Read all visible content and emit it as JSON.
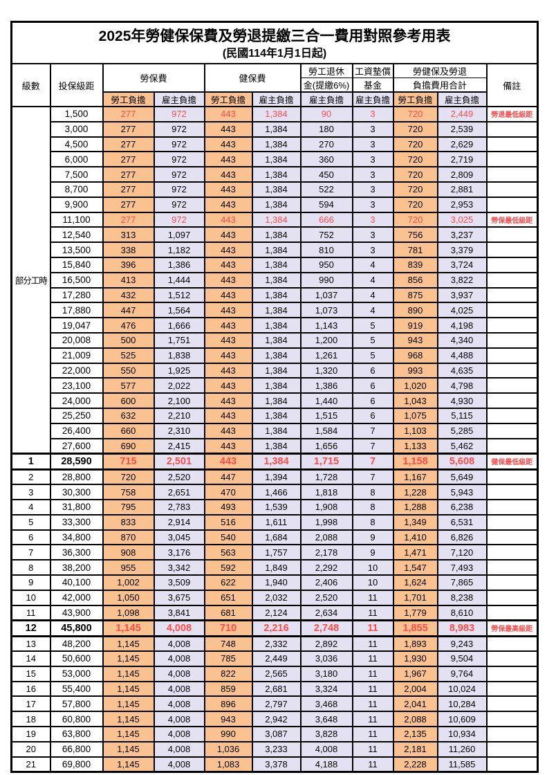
{
  "title": "2025年勞健保保費及勞退提繳三合一費用對照參考用表",
  "subtitle": "(民國114年1月1日起)",
  "colors": {
    "employee_bg": "#FAC291",
    "employer_bg": "#E4E2F2",
    "highlight_red": "#FF4A4A",
    "border": "#000000"
  },
  "header": {
    "level": "級數",
    "bracket": "投保級距",
    "labor": "勞保費",
    "health": "健保費",
    "pension_l1": "勞工退休",
    "pension_l2": "金(提繳6%)",
    "fund_l1": "工資墊償",
    "fund_l2": "基金",
    "total_l1": "勞健保及勞退",
    "total_l2": "負擔費用合計",
    "remark": "備註",
    "employee_share": "勞工負擔",
    "employer_share": "雇主負擔"
  },
  "table": {
    "part_time_label": "部分工時",
    "part_time_rowspan": 23,
    "rows": [
      {
        "level": "",
        "bracket": "1,500",
        "values": [
          "277",
          "972",
          "443",
          "1,384",
          "90",
          "3",
          "720",
          "2,449"
        ],
        "remark": "勞退最低級距",
        "red": true
      },
      {
        "level": "",
        "bracket": "3,000",
        "values": [
          "277",
          "972",
          "443",
          "1,384",
          "180",
          "3",
          "720",
          "2,539"
        ],
        "remark": ""
      },
      {
        "level": "",
        "bracket": "4,500",
        "values": [
          "277",
          "972",
          "443",
          "1,384",
          "270",
          "3",
          "720",
          "2,629"
        ],
        "remark": ""
      },
      {
        "level": "",
        "bracket": "6,000",
        "values": [
          "277",
          "972",
          "443",
          "1,384",
          "360",
          "3",
          "720",
          "2,719"
        ],
        "remark": ""
      },
      {
        "level": "",
        "bracket": "7,500",
        "values": [
          "277",
          "972",
          "443",
          "1,384",
          "450",
          "3",
          "720",
          "2,809"
        ],
        "remark": ""
      },
      {
        "level": "",
        "bracket": "8,700",
        "values": [
          "277",
          "972",
          "443",
          "1,384",
          "522",
          "3",
          "720",
          "2,881"
        ],
        "remark": ""
      },
      {
        "level": "",
        "bracket": "9,900",
        "values": [
          "277",
          "972",
          "443",
          "1,384",
          "594",
          "3",
          "720",
          "2,953"
        ],
        "remark": ""
      },
      {
        "level": "",
        "bracket": "11,100",
        "values": [
          "277",
          "972",
          "443",
          "1,384",
          "666",
          "3",
          "720",
          "3,025"
        ],
        "remark": "勞保最低級距",
        "red": true
      },
      {
        "level": "",
        "bracket": "12,540",
        "values": [
          "313",
          "1,097",
          "443",
          "1,384",
          "752",
          "3",
          "756",
          "3,237"
        ],
        "remark": ""
      },
      {
        "level": "",
        "bracket": "13,500",
        "values": [
          "338",
          "1,182",
          "443",
          "1,384",
          "810",
          "3",
          "781",
          "3,379"
        ],
        "remark": ""
      },
      {
        "level": "",
        "bracket": "15,840",
        "values": [
          "396",
          "1,386",
          "443",
          "1,384",
          "950",
          "4",
          "839",
          "3,724"
        ],
        "remark": ""
      },
      {
        "level": "",
        "bracket": "16,500",
        "values": [
          "413",
          "1,444",
          "443",
          "1,384",
          "990",
          "4",
          "856",
          "3,822"
        ],
        "remark": ""
      },
      {
        "level": "",
        "bracket": "17,280",
        "values": [
          "432",
          "1,512",
          "443",
          "1,384",
          "1,037",
          "4",
          "875",
          "3,937"
        ],
        "remark": ""
      },
      {
        "level": "",
        "bracket": "17,880",
        "values": [
          "447",
          "1,564",
          "443",
          "1,384",
          "1,073",
          "4",
          "890",
          "4,025"
        ],
        "remark": ""
      },
      {
        "level": "",
        "bracket": "19,047",
        "values": [
          "476",
          "1,666",
          "443",
          "1,384",
          "1,143",
          "5",
          "919",
          "4,198"
        ],
        "remark": ""
      },
      {
        "level": "",
        "bracket": "20,008",
        "values": [
          "500",
          "1,751",
          "443",
          "1,384",
          "1,200",
          "5",
          "943",
          "4,340"
        ],
        "remark": ""
      },
      {
        "level": "",
        "bracket": "21,009",
        "values": [
          "525",
          "1,838",
          "443",
          "1,384",
          "1,261",
          "5",
          "968",
          "4,488"
        ],
        "remark": ""
      },
      {
        "level": "",
        "bracket": "22,000",
        "values": [
          "550",
          "1,925",
          "443",
          "1,384",
          "1,320",
          "6",
          "993",
          "4,635"
        ],
        "remark": ""
      },
      {
        "level": "",
        "bracket": "23,100",
        "values": [
          "577",
          "2,022",
          "443",
          "1,384",
          "1,386",
          "6",
          "1,020",
          "4,798"
        ],
        "remark": ""
      },
      {
        "level": "",
        "bracket": "24,000",
        "values": [
          "600",
          "2,100",
          "443",
          "1,384",
          "1,440",
          "6",
          "1,043",
          "4,930"
        ],
        "remark": ""
      },
      {
        "level": "",
        "bracket": "25,250",
        "values": [
          "632",
          "2,210",
          "443",
          "1,384",
          "1,515",
          "6",
          "1,075",
          "5,115"
        ],
        "remark": ""
      },
      {
        "level": "",
        "bracket": "26,400",
        "values": [
          "660",
          "2,310",
          "443",
          "1,384",
          "1,584",
          "7",
          "1,103",
          "5,285"
        ],
        "remark": ""
      },
      {
        "level": "",
        "bracket": "27,600",
        "values": [
          "690",
          "2,415",
          "443",
          "1,384",
          "1,656",
          "7",
          "1,133",
          "5,462"
        ],
        "remark": ""
      },
      {
        "level": "1",
        "bracket": "28,590",
        "values": [
          "715",
          "2,501",
          "443",
          "1,384",
          "1,715",
          "7",
          "1,158",
          "5,608"
        ],
        "remark": "健保最低級距",
        "red": true,
        "emphasis": true
      },
      {
        "level": "2",
        "bracket": "28,800",
        "values": [
          "720",
          "2,520",
          "447",
          "1,394",
          "1,728",
          "7",
          "1,167",
          "5,649"
        ],
        "remark": ""
      },
      {
        "level": "3",
        "bracket": "30,300",
        "values": [
          "758",
          "2,651",
          "470",
          "1,466",
          "1,818",
          "8",
          "1,228",
          "5,943"
        ],
        "remark": ""
      },
      {
        "level": "4",
        "bracket": "31,800",
        "values": [
          "795",
          "2,783",
          "493",
          "1,539",
          "1,908",
          "8",
          "1,288",
          "6,238"
        ],
        "remark": ""
      },
      {
        "level": "5",
        "bracket": "33,300",
        "values": [
          "833",
          "2,914",
          "516",
          "1,611",
          "1,998",
          "8",
          "1,349",
          "6,531"
        ],
        "remark": ""
      },
      {
        "level": "6",
        "bracket": "34,800",
        "values": [
          "870",
          "3,045",
          "540",
          "1,684",
          "2,088",
          "9",
          "1,410",
          "6,826"
        ],
        "remark": ""
      },
      {
        "level": "7",
        "bracket": "36,300",
        "values": [
          "908",
          "3,176",
          "563",
          "1,757",
          "2,178",
          "9",
          "1,471",
          "7,120"
        ],
        "remark": ""
      },
      {
        "level": "8",
        "bracket": "38,200",
        "values": [
          "955",
          "3,342",
          "592",
          "1,849",
          "2,292",
          "10",
          "1,547",
          "7,493"
        ],
        "remark": ""
      },
      {
        "level": "9",
        "bracket": "40,100",
        "values": [
          "1,002",
          "3,509",
          "622",
          "1,940",
          "2,406",
          "10",
          "1,624",
          "7,865"
        ],
        "remark": ""
      },
      {
        "level": "10",
        "bracket": "42,000",
        "values": [
          "1,050",
          "3,675",
          "651",
          "2,032",
          "2,520",
          "11",
          "1,701",
          "8,238"
        ],
        "remark": ""
      },
      {
        "level": "11",
        "bracket": "43,900",
        "values": [
          "1,098",
          "3,841",
          "681",
          "2,124",
          "2,634",
          "11",
          "1,779",
          "8,610"
        ],
        "remark": ""
      },
      {
        "level": "12",
        "bracket": "45,800",
        "values": [
          "1,145",
          "4,008",
          "710",
          "2,216",
          "2,748",
          "11",
          "1,855",
          "8,983"
        ],
        "remark": "勞保最高級距",
        "red": true,
        "emphasis": true
      },
      {
        "level": "13",
        "bracket": "48,200",
        "values": [
          "1,145",
          "4,008",
          "748",
          "2,332",
          "2,892",
          "11",
          "1,893",
          "9,243"
        ],
        "remark": ""
      },
      {
        "level": "14",
        "bracket": "50,600",
        "values": [
          "1,145",
          "4,008",
          "785",
          "2,449",
          "3,036",
          "11",
          "1,930",
          "9,504"
        ],
        "remark": ""
      },
      {
        "level": "15",
        "bracket": "53,000",
        "values": [
          "1,145",
          "4,008",
          "822",
          "2,565",
          "3,180",
          "11",
          "1,967",
          "9,764"
        ],
        "remark": ""
      },
      {
        "level": "16",
        "bracket": "55,400",
        "values": [
          "1,145",
          "4,008",
          "859",
          "2,681",
          "3,324",
          "11",
          "2,004",
          "10,024"
        ],
        "remark": ""
      },
      {
        "level": "17",
        "bracket": "57,800",
        "values": [
          "1,145",
          "4,008",
          "896",
          "2,797",
          "3,468",
          "11",
          "2,041",
          "10,284"
        ],
        "remark": ""
      },
      {
        "level": "18",
        "bracket": "60,800",
        "values": [
          "1,145",
          "4,008",
          "943",
          "2,942",
          "3,648",
          "11",
          "2,088",
          "10,609"
        ],
        "remark": ""
      },
      {
        "level": "19",
        "bracket": "63,800",
        "values": [
          "1,145",
          "4,008",
          "990",
          "3,087",
          "3,828",
          "11",
          "2,135",
          "10,934"
        ],
        "remark": ""
      },
      {
        "level": "20",
        "bracket": "66,800",
        "values": [
          "1,145",
          "4,008",
          "1,036",
          "3,233",
          "4,008",
          "11",
          "2,181",
          "11,260"
        ],
        "remark": ""
      },
      {
        "level": "21",
        "bracket": "69,800",
        "values": [
          "1,145",
          "4,008",
          "1,083",
          "3,378",
          "4,188",
          "11",
          "2,228",
          "11,585"
        ],
        "remark": ""
      }
    ]
  }
}
